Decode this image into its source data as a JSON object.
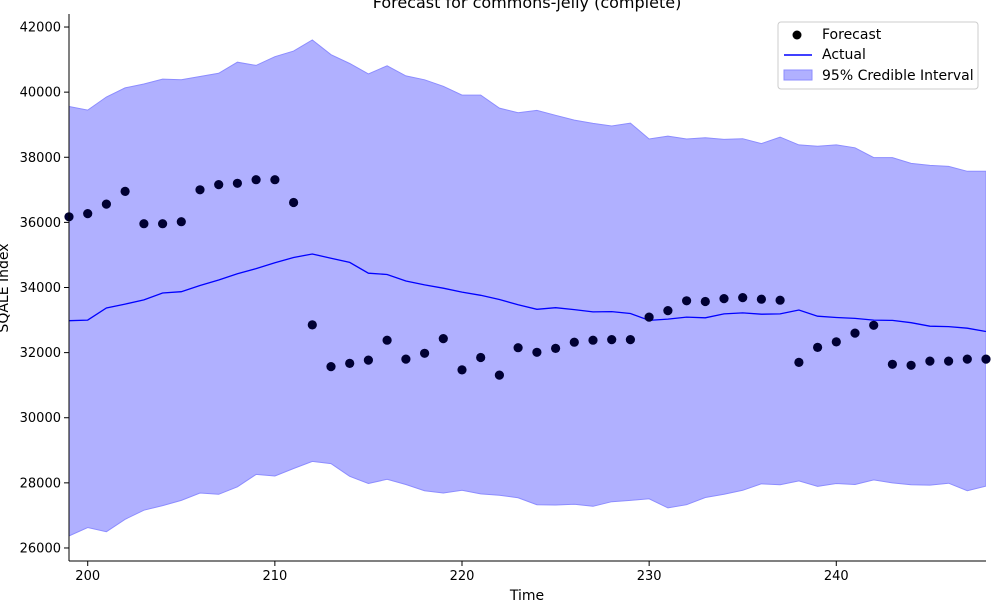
{
  "chart_data": {
    "type": "line",
    "title": "Forecast for commons-jelly (complete)",
    "xlabel": "Time",
    "ylabel": "SQALE Index",
    "xlim": [
      199,
      248
    ],
    "ylim": [
      25600,
      42400
    ],
    "x_ticks": [
      200,
      210,
      220,
      230,
      240
    ],
    "y_ticks": [
      26000,
      28000,
      30000,
      32000,
      34000,
      36000,
      38000,
      40000,
      42000
    ],
    "legend": {
      "placement": "top-right",
      "entries": [
        "Forecast",
        "Actual",
        "95% Credible Interval"
      ]
    },
    "colors": {
      "forecast": "#000033",
      "actual": "#0000ff",
      "interval_fill": "#b0b0ff",
      "interval_edge": "#8c8cff"
    },
    "x": [
      199,
      200,
      201,
      202,
      203,
      204,
      205,
      206,
      207,
      208,
      209,
      210,
      211,
      212,
      213,
      214,
      215,
      216,
      217,
      218,
      219,
      220,
      221,
      222,
      223,
      224,
      225,
      226,
      227,
      228,
      229,
      230,
      231,
      232,
      233,
      234,
      235,
      236,
      237,
      238,
      239,
      240,
      241,
      242,
      243,
      244,
      245,
      246,
      247,
      248
    ],
    "series": [
      {
        "name": "Forecast",
        "kind": "scatter",
        "values": [
          36170,
          36270,
          36560,
          36950,
          35960,
          35960,
          36020,
          37000,
          37160,
          37200,
          37310,
          37310,
          36610,
          32850,
          31570,
          31670,
          31770,
          32380,
          31800,
          31980,
          32430,
          31470,
          31850,
          31310,
          32150,
          32010,
          32130,
          32320,
          32380,
          32400,
          32400,
          33090,
          33290,
          33590,
          33570,
          33660,
          33690,
          33640,
          33610,
          31700,
          32160,
          32330,
          32600,
          32840,
          31640,
          31610,
          31740,
          31740,
          31800,
          31800
        ]
      },
      {
        "name": "Actual",
        "kind": "line",
        "values": [
          32980,
          33000,
          33370,
          33490,
          33620,
          33830,
          33870,
          34060,
          34230,
          34420,
          34580,
          34760,
          34920,
          35030,
          34900,
          34770,
          34440,
          34400,
          34200,
          34080,
          33980,
          33860,
          33760,
          33630,
          33470,
          33330,
          33380,
          33320,
          33250,
          33260,
          33200,
          32990,
          33030,
          33090,
          33070,
          33190,
          33220,
          33180,
          33190,
          33310,
          33120,
          33080,
          33050,
          33000,
          32990,
          32920,
          32810,
          32800,
          32750,
          32650
        ]
      },
      {
        "name": "95% Credible Interval",
        "kind": "band",
        "lower": [
          26370,
          26630,
          26500,
          26880,
          27160,
          27300,
          27460,
          27690,
          27650,
          27880,
          28260,
          28210,
          28440,
          28660,
          28590,
          28200,
          27980,
          28110,
          27950,
          27760,
          27690,
          27770,
          27660,
          27620,
          27540,
          27330,
          27320,
          27340,
          27280,
          27420,
          27460,
          27510,
          27230,
          27330,
          27550,
          27650,
          27770,
          27970,
          27940,
          28060,
          27890,
          27980,
          27950,
          28090,
          28000,
          27940,
          27930,
          27990,
          27760,
          27900
        ],
        "upper": [
          39560,
          39450,
          39850,
          40130,
          40250,
          40400,
          40380,
          40480,
          40580,
          40920,
          40820,
          41090,
          41260,
          41600,
          41150,
          40880,
          40560,
          40810,
          40500,
          40380,
          40180,
          39910,
          39910,
          39510,
          39370,
          39440,
          39290,
          39140,
          39040,
          38960,
          39050,
          38560,
          38650,
          38560,
          38600,
          38550,
          38570,
          38420,
          38620,
          38380,
          38340,
          38380,
          38290,
          37990,
          37990,
          37810,
          37750,
          37720,
          37570,
          37570
        ]
      }
    ]
  }
}
